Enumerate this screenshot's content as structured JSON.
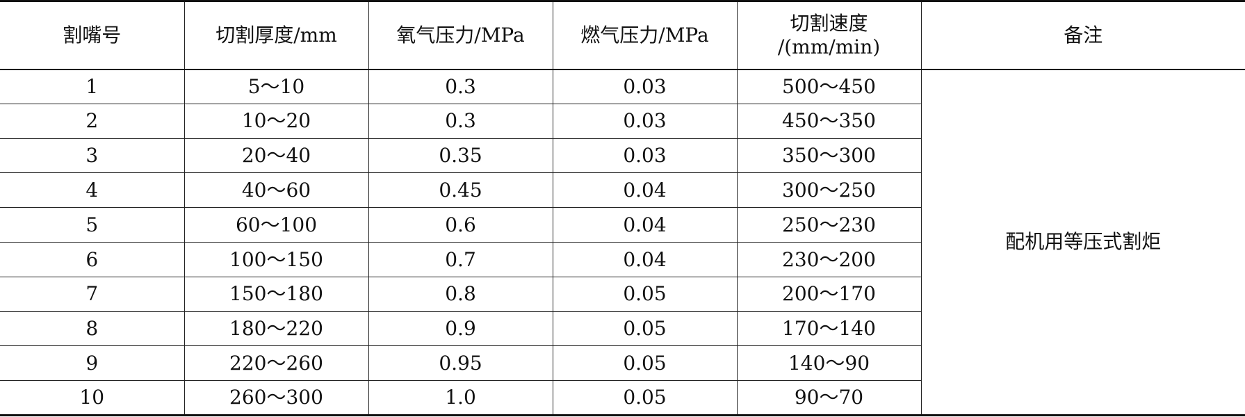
{
  "table": {
    "headers": [
      "割嘴号",
      "切割厚度/mm",
      "氧气压力/MPa",
      "燃气压力/MPa",
      "切割速度\n/(mm/min)",
      "备注"
    ],
    "speed_header_line1": "切割速度",
    "speed_header_line2": "/(mm/min)",
    "rows": [
      {
        "nozzle": "1",
        "thickness": "5～10",
        "oxygen": "0.3",
        "gas": "0.03",
        "speed": "500～450"
      },
      {
        "nozzle": "2",
        "thickness": "10～20",
        "oxygen": "0.3",
        "gas": "0.03",
        "speed": "450～350"
      },
      {
        "nozzle": "3",
        "thickness": "20～40",
        "oxygen": "0.35",
        "gas": "0.03",
        "speed": "350～300"
      },
      {
        "nozzle": "4",
        "thickness": "40～60",
        "oxygen": "0.45",
        "gas": "0.04",
        "speed": "300～250"
      },
      {
        "nozzle": "5",
        "thickness": "60～100",
        "oxygen": "0.6",
        "gas": "0.04",
        "speed": "250～230"
      },
      {
        "nozzle": "6",
        "thickness": "100～150",
        "oxygen": "0.7",
        "gas": "0.04",
        "speed": "230～200"
      },
      {
        "nozzle": "7",
        "thickness": "150～180",
        "oxygen": "0.8",
        "gas": "0.05",
        "speed": "200～170"
      },
      {
        "nozzle": "8",
        "thickness": "180～220",
        "oxygen": "0.9",
        "gas": "0.05",
        "speed": "170～140"
      },
      {
        "nozzle": "9",
        "thickness": "220～260",
        "oxygen": "0.95",
        "gas": "0.05",
        "speed": "140～90"
      },
      {
        "nozzle": "10",
        "thickness": "260～300",
        "oxygen": "1.0",
        "gas": "0.05",
        "speed": "90～70"
      }
    ],
    "remark": "配机用等压式割炬"
  },
  "colors": {
    "rule": "#222222",
    "text": "#111111",
    "background": "#ffffff"
  }
}
